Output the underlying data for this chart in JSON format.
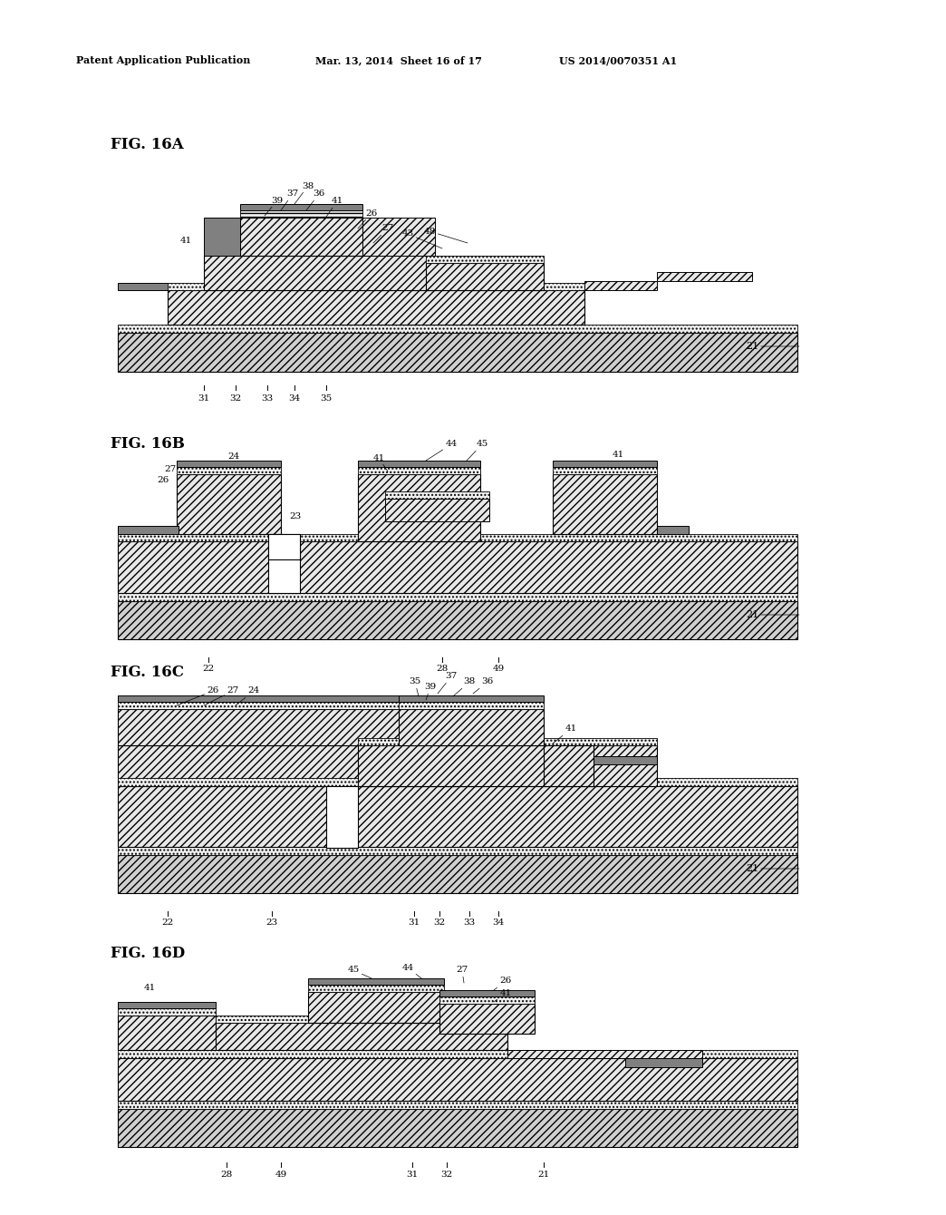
{
  "bg": "#ffffff",
  "tc": "#000000",
  "header": {
    "l": "Patent Application Publication",
    "c": "Mar. 13, 2014  Sheet 16 of 17",
    "r": "US 2014/0070351 A1"
  }
}
